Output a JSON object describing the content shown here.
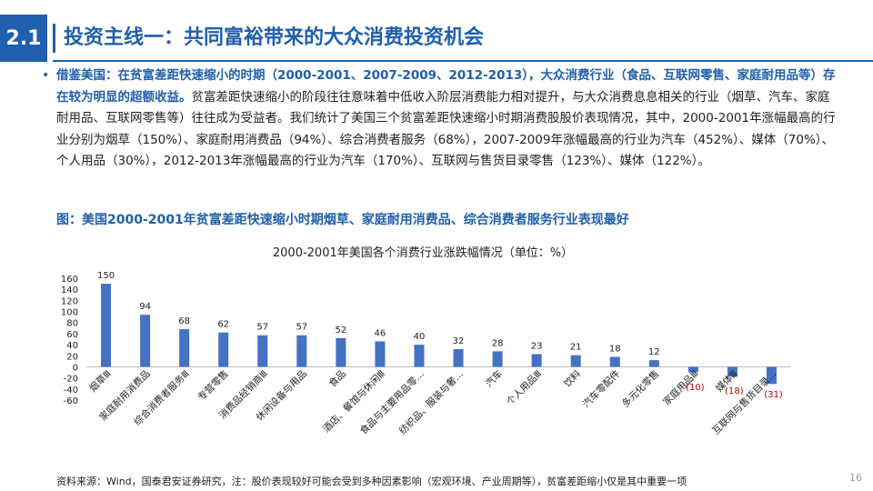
{
  "header": {
    "section_number": "2.1",
    "title": "投资主线一：共同富裕带来的大众消费投资机会"
  },
  "body": {
    "lead_bold": "借鉴美国：在贫富差距快速缩小的时期（2000-2001、2007-2009、2012-2013），大众消费行业（食品、互联网零售、家庭耐用品等）存在较为明显的超额收益。",
    "rest": "贫富差距快速缩小的阶段往往意味着中低收入阶层消费能力相对提升，与大众消费息息相关的行业（烟草、汽车、家庭耐用品、互联网零售等）往往成为受益者。我们统计了美国三个贫富差距快速缩小时期消费股股价表现情况，其中，2000-2001年涨幅最高的行业分别为烟草（150%）、家庭耐用消费品（94%）、综合消费者服务（68%），2007-2009年涨幅最高的行业为汽车（452%）、媒体（70%）、个人用品（30%），2012-2013年涨幅最高的行业为汽车（170%）、互联网与售货目录零售（123%）、媒体（122%）。"
  },
  "figure": {
    "caption": "图：美国2000-2001年贫富差距快速缩小时期烟草、家庭耐用消费品、综合消费者服务行业表现最好"
  },
  "chart_data": {
    "type": "bar",
    "title": "2000-2001年美国各个消费行业涨跌幅情况（单位：%）",
    "categories": [
      "烟草Ⅲ",
      "家庭耐用消费品",
      "综合消费者服务Ⅲ",
      "专营零售",
      "消费品经销商Ⅲ",
      "休闲设备与用品",
      "食品",
      "酒店、餐馆与休闲Ⅲ",
      "食品与主要用品零…",
      "纺织品、服装与奢…",
      "汽车",
      "个人用品Ⅲ",
      "饮料",
      "汽车零配件",
      "多元化零售",
      "家庭用品Ⅲ",
      "媒体Ⅲ",
      "互联网与售货目录…"
    ],
    "values": [
      150,
      94,
      68,
      62,
      57,
      57,
      52,
      46,
      40,
      32,
      28,
      23,
      21,
      18,
      12,
      -10,
      -18,
      -31
    ],
    "value_labels": [
      "150",
      "94",
      "68",
      "62",
      "57",
      "57",
      "52",
      "46",
      "40",
      "32",
      "28",
      "23",
      "21",
      "18",
      "12",
      "(10)",
      "(18)",
      "(31)"
    ],
    "ylim": [
      -60,
      160
    ],
    "yticks": [
      -60,
      -40,
      -20,
      0,
      20,
      40,
      60,
      80,
      100,
      120,
      140,
      160
    ],
    "xlabel": "",
    "ylabel": "",
    "grid": false,
    "bar_color": "#4472c4",
    "negative_label_color": "#c00000"
  },
  "footer": {
    "note": "资料来源：Wind，国泰君安证券研究，注：股价表现较好可能会受到多种因素影响（宏观环境、产业周期等），贫富差距缩小仅是其中重要一项",
    "page": "16"
  },
  "colors": {
    "accent": "#1f5fad"
  }
}
